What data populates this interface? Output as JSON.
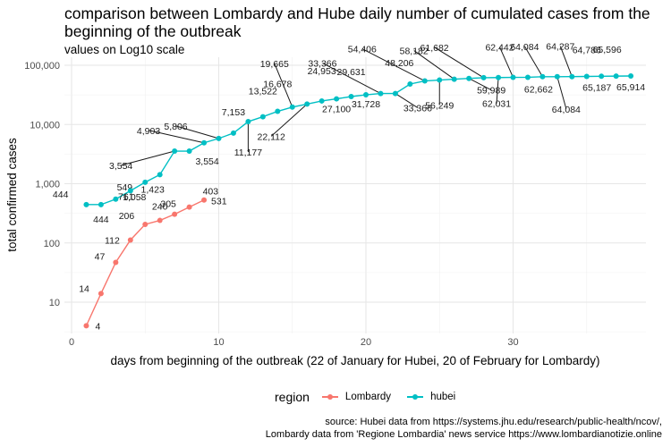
{
  "title": "comparison between Lombardy and Hube daily number of cumulated cases from the beginning of the outbreak",
  "subtitle": "values on Log10 scale",
  "legend": {
    "title": "region",
    "items": [
      {
        "label": "Lombardy",
        "color": "#F8766D"
      },
      {
        "label": "hubei",
        "color": "#00BFC4"
      }
    ]
  },
  "caption": {
    "line1": "source: Hubei data from https://systems.jhu.edu/research/public-health/ncov/,",
    "line2": "Lombardy data from 'Regione Lombardia' news service https://www.lombardianotizie.online"
  },
  "chart_data": {
    "type": "line",
    "title": "comparison between Lombardy and Hube daily number of cumulated cases from the beginning of the outbreak",
    "subtitle": "values on Log10 scale",
    "xlabel": "days from beginning of the outbreak (22 of January for Hubei, 20 of February for Lombardy)",
    "ylabel": "total confirmed cases",
    "y_scale": "log10",
    "xlim": [
      0,
      38
    ],
    "ylim": [
      3,
      100000
    ],
    "x_ticks": [
      0,
      10,
      20,
      30
    ],
    "x_tick_labels": [
      "0",
      "10",
      "20",
      "30"
    ],
    "y_ticks": [
      10,
      100,
      1000,
      10000,
      100000
    ],
    "y_tick_labels": [
      "10",
      "100",
      "1,000",
      "10,000",
      "100,000"
    ],
    "grid": true,
    "legend_position": "bottom",
    "series": [
      {
        "name": "Lombardy",
        "color": "#F8766D",
        "x": [
          1,
          2,
          3,
          4,
          5,
          6,
          7,
          8,
          9
        ],
        "values": [
          4,
          14,
          47,
          112,
          206,
          240,
          305,
          403,
          531
        ],
        "labels": [
          "4",
          "14",
          "47",
          "112",
          "206",
          "240",
          "305",
          "403",
          "531"
        ]
      },
      {
        "name": "hubei",
        "color": "#00BFC4",
        "x": [
          1,
          2,
          3,
          4,
          5,
          6,
          7,
          8,
          9,
          10,
          11,
          12,
          13,
          14,
          15,
          16,
          17,
          18,
          19,
          20,
          21,
          22,
          23,
          24,
          25,
          26,
          27,
          28,
          29,
          30,
          31,
          32,
          33,
          34,
          35,
          36,
          37,
          38
        ],
        "values": [
          444,
          444,
          549,
          761,
          1058,
          1423,
          3554,
          3554,
          4903,
          5806,
          7153,
          11177,
          13522,
          16678,
          19665,
          22112,
          24953,
          27100,
          29631,
          31728,
          33366,
          33366,
          48206,
          54406,
          56249,
          58182,
          59989,
          61682,
          62031,
          62442,
          62662,
          64084,
          64084,
          64287,
          64786,
          65187,
          65596,
          65914
        ],
        "labels": [
          "444",
          "444",
          "549",
          "761",
          "1,058",
          "1,423",
          "3,554",
          "3,554",
          "4,903",
          "5,806",
          "7,153",
          "11,177",
          "13,522",
          "16,678",
          "19,665",
          "22,112",
          "24,953",
          "27,100",
          "29,631",
          "31,728",
          "33,366",
          "33,366",
          "48,206",
          "54,406",
          "56,249",
          "58,182",
          "59,989",
          "61,682",
          "62,031",
          "62,442",
          "62,662",
          "64,084",
          "64,084",
          "64,287",
          "64,786",
          "65,187",
          "65,596",
          "65,914"
        ]
      }
    ]
  }
}
